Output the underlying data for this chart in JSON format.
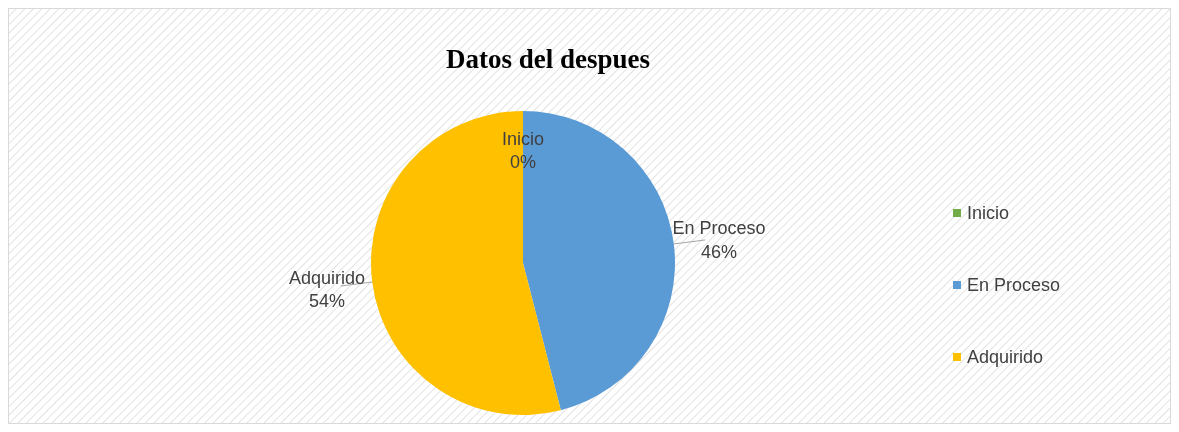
{
  "chart_data": {
    "type": "pie",
    "title": "Datos del despues",
    "categories": [
      "Inicio",
      "En Proceso",
      "Adquirido"
    ],
    "values": [
      0,
      46,
      54
    ],
    "colors": [
      "#70ad47",
      "#5b9bd5",
      "#ffc000"
    ],
    "value_labels": [
      "0%",
      "46%",
      "54%"
    ],
    "legend": "right"
  }
}
